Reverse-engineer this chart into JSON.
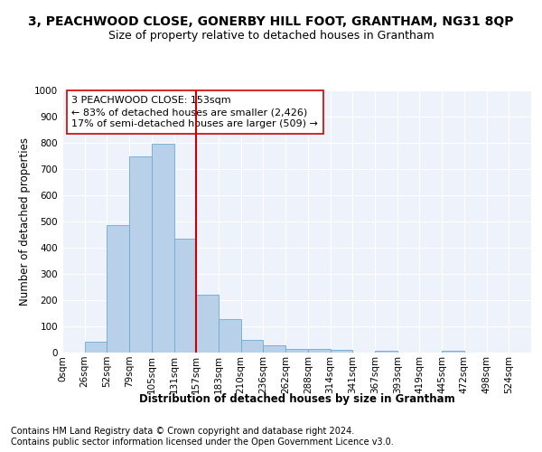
{
  "title1": "3, PEACHWOOD CLOSE, GONERBY HILL FOOT, GRANTHAM, NG31 8QP",
  "title2": "Size of property relative to detached houses in Grantham",
  "xlabel": "Distribution of detached houses by size in Grantham",
  "ylabel": "Number of detached properties",
  "bar_labels": [
    "0sqm",
    "26sqm",
    "52sqm",
    "79sqm",
    "105sqm",
    "131sqm",
    "157sqm",
    "183sqm",
    "210sqm",
    "236sqm",
    "262sqm",
    "288sqm",
    "314sqm",
    "341sqm",
    "367sqm",
    "393sqm",
    "419sqm",
    "445sqm",
    "472sqm",
    "498sqm",
    "524sqm"
  ],
  "bar_values": [
    0,
    43,
    485,
    750,
    795,
    435,
    220,
    127,
    50,
    27,
    15,
    13,
    10,
    0,
    8,
    0,
    0,
    8,
    0,
    0,
    0
  ],
  "bar_color": "#b8d0e8",
  "bar_edge_color": "#6aaad4",
  "vline_x_idx": 6,
  "vline_color": "#cc0000",
  "annotation_title": "3 PEACHWOOD CLOSE: 153sqm",
  "annotation_line1": "← 83% of detached houses are smaller (2,426)",
  "annotation_line2": "17% of semi-detached houses are larger (509) →",
  "annotation_box_facecolor": "#ffffff",
  "annotation_box_edgecolor": "#cc0000",
  "ylim": [
    0,
    1000
  ],
  "yticks": [
    0,
    100,
    200,
    300,
    400,
    500,
    600,
    700,
    800,
    900,
    1000
  ],
  "footer1": "Contains HM Land Registry data © Crown copyright and database right 2024.",
  "footer2": "Contains public sector information licensed under the Open Government Licence v3.0.",
  "bg_color": "#ffffff",
  "plot_bg_color": "#edf2fb",
  "title1_fontsize": 10,
  "title2_fontsize": 9,
  "axis_label_fontsize": 8.5,
  "tick_fontsize": 7.5,
  "footer_fontsize": 7,
  "annotation_fontsize": 8,
  "ylabel_fontsize": 8.5
}
